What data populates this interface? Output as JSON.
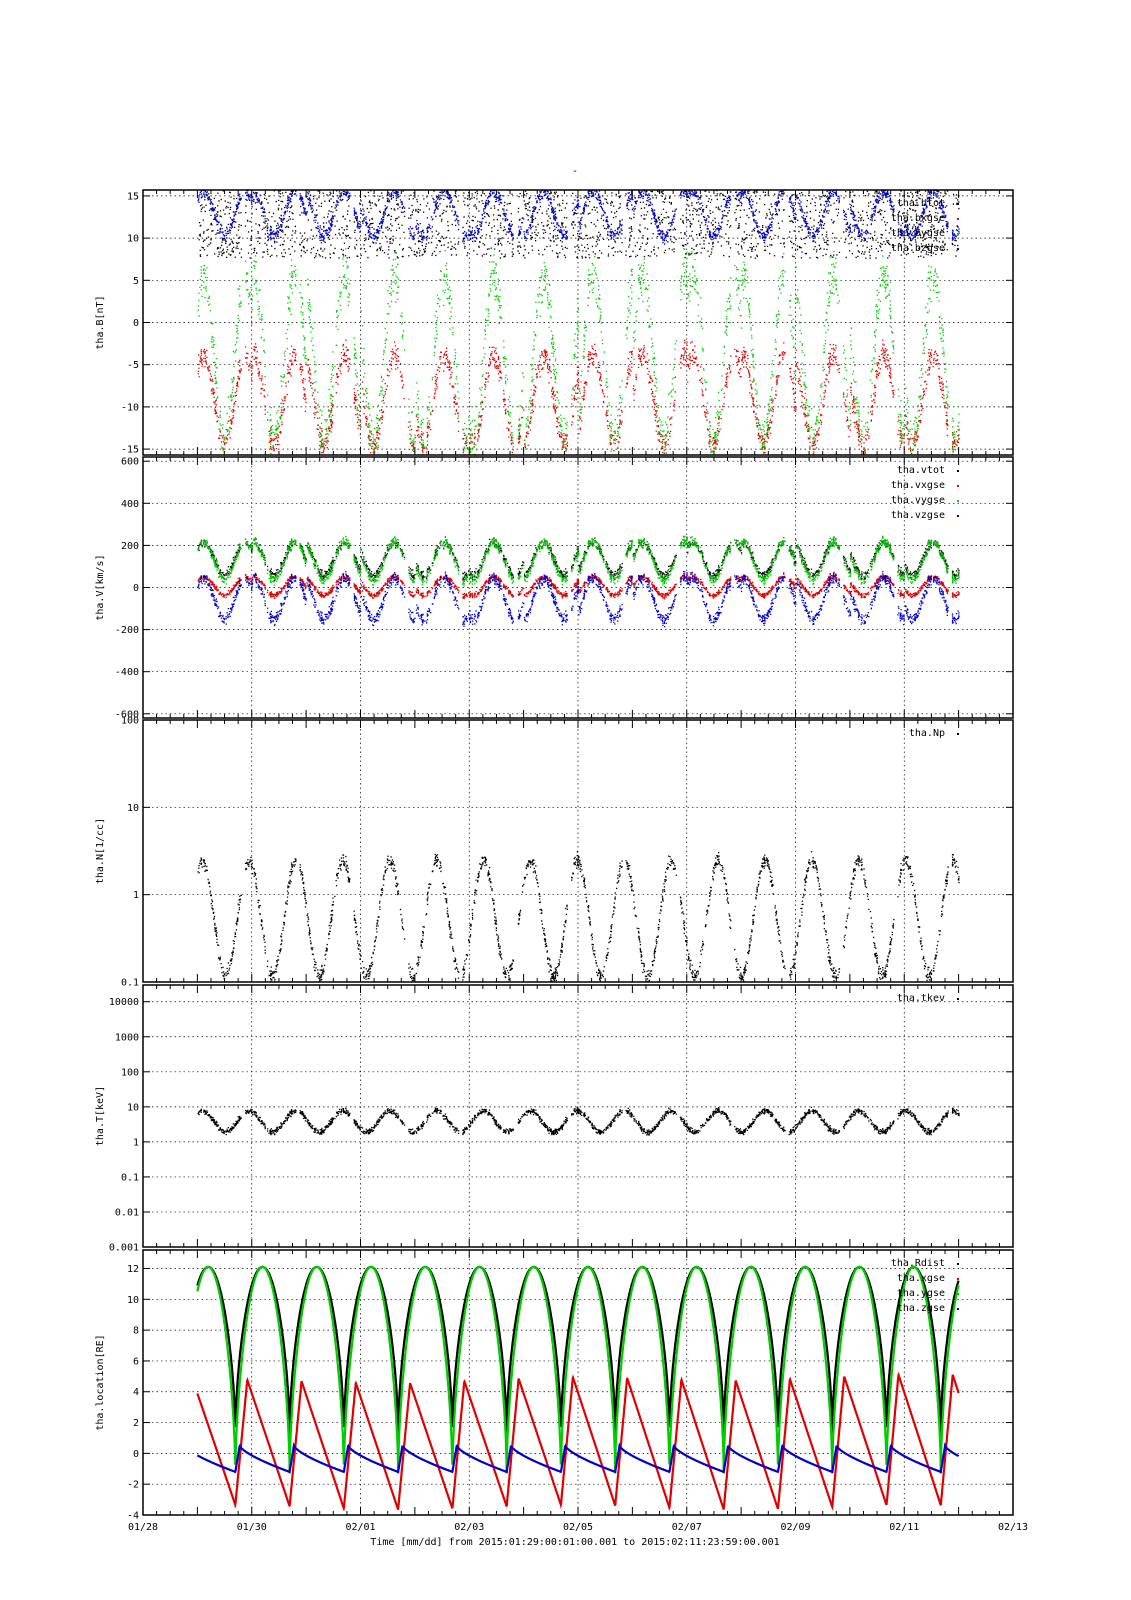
{
  "title": "-",
  "xaxis": {
    "tick_labels": [
      "01/28",
      "01/30",
      "02/01",
      "02/03",
      "02/05",
      "02/07",
      "02/09",
      "02/11",
      "02/13"
    ],
    "tick_days": [
      0,
      2,
      4,
      6,
      8,
      10,
      12,
      14,
      16
    ],
    "range_days": [
      0,
      16
    ],
    "data_start_day": 1.0,
    "data_end_day": 15.0,
    "label": "Time [mm/dd]  from 2015:01:29:00:01:00.001  to  2015:02:11:23:59:00.001"
  },
  "colors": {
    "black": "#000000",
    "red": "#e00000",
    "green": "#00cc00",
    "blue": "#0000cc",
    "grid": "#000000"
  },
  "chart_data": [
    {
      "id": "B",
      "type": "scatter",
      "ylabel": "tha.B[nT]",
      "yscale": "linear",
      "ylim": [
        -15.7,
        15.7
      ],
      "yticks": [
        -15,
        -10,
        -5,
        0,
        5,
        10,
        15
      ],
      "ytick_labels": [
        "-15",
        "-10",
        "-5",
        "0",
        "5",
        "10",
        "15"
      ],
      "grid": true,
      "legend_placement": "top-right",
      "series": [
        {
          "name": "tha.btot",
          "color": "black",
          "description": "mostly above range (clipped at top)"
        },
        {
          "name": "tha.bxgse",
          "color": "red",
          "typical": [
            -15,
            -3
          ]
        },
        {
          "name": "tha.bygse",
          "color": "green",
          "typical": [
            -15,
            7
          ]
        },
        {
          "name": "tha.bzgse",
          "color": "blue",
          "typical": [
            10,
            16
          ]
        }
      ]
    },
    {
      "id": "V",
      "type": "scatter",
      "ylabel": "tha.V[km/s]",
      "yscale": "linear",
      "ylim": [
        -620,
        620
      ],
      "yticks": [
        -600,
        -400,
        -200,
        0,
        200,
        400,
        600
      ],
      "ytick_labels": [
        "-600",
        "-400",
        "-200",
        "0",
        "200",
        "400",
        "600"
      ],
      "grid": true,
      "legend_placement": "top-right",
      "series": [
        {
          "name": "tha.vtot",
          "color": "black",
          "typical": [
            50,
            230
          ]
        },
        {
          "name": "tha.vxgse",
          "color": "red",
          "typical": [
            -40,
            60
          ]
        },
        {
          "name": "tha.vygse",
          "color": "green",
          "typical": [
            30,
            230
          ]
        },
        {
          "name": "tha.vzgse",
          "color": "blue",
          "typical": [
            -160,
            60
          ]
        }
      ]
    },
    {
      "id": "N",
      "type": "scatter",
      "ylabel": "tha.N[1/cc]",
      "yscale": "log",
      "ylim": [
        0.1,
        100
      ],
      "yticks": [
        0.1,
        1,
        10,
        100
      ],
      "ytick_labels": [
        "0.1",
        "1",
        "10",
        "100"
      ],
      "grid": true,
      "legend_placement": "top-right",
      "series": [
        {
          "name": "tha.Np",
          "color": "black",
          "typical": [
            0.12,
            2.5
          ]
        }
      ]
    },
    {
      "id": "T",
      "type": "scatter",
      "ylabel": "tha.T[keV]",
      "yscale": "log",
      "ylim": [
        0.001,
        30000
      ],
      "yticks": [
        0.001,
        0.01,
        0.1,
        1,
        10,
        100,
        1000,
        10000
      ],
      "ytick_labels": [
        "0.001",
        "0.01",
        "0.1",
        "1",
        "10",
        "100",
        "1000",
        "10000"
      ],
      "grid": true,
      "legend_placement": "top-right",
      "series": [
        {
          "name": "tha.tkev",
          "color": "black",
          "typical": [
            2,
            8
          ]
        }
      ]
    },
    {
      "id": "location",
      "type": "line",
      "ylabel": "tha.location[RE]",
      "yscale": "linear",
      "ylim": [
        -4,
        13.2
      ],
      "yticks": [
        -4,
        -2,
        0,
        2,
        4,
        6,
        8,
        10,
        12
      ],
      "ytick_labels": [
        "-4",
        "-2",
        "0",
        "2",
        "4",
        "6",
        "8",
        "10",
        "12"
      ],
      "grid": true,
      "legend_placement": "top-right",
      "orbit_period_days": 0.998,
      "series": [
        {
          "name": "tha.Rdist",
          "color": "black",
          "range": [
            1.1,
            12.1
          ]
        },
        {
          "name": "tha.xgse",
          "color": "red",
          "range": [
            -3.5,
            5
          ]
        },
        {
          "name": "tha.ygse",
          "color": "green",
          "range": [
            -1.3,
            12.1
          ]
        },
        {
          "name": "tha.zgse",
          "color": "blue",
          "range": [
            -1.2,
            0.5
          ]
        }
      ]
    }
  ]
}
